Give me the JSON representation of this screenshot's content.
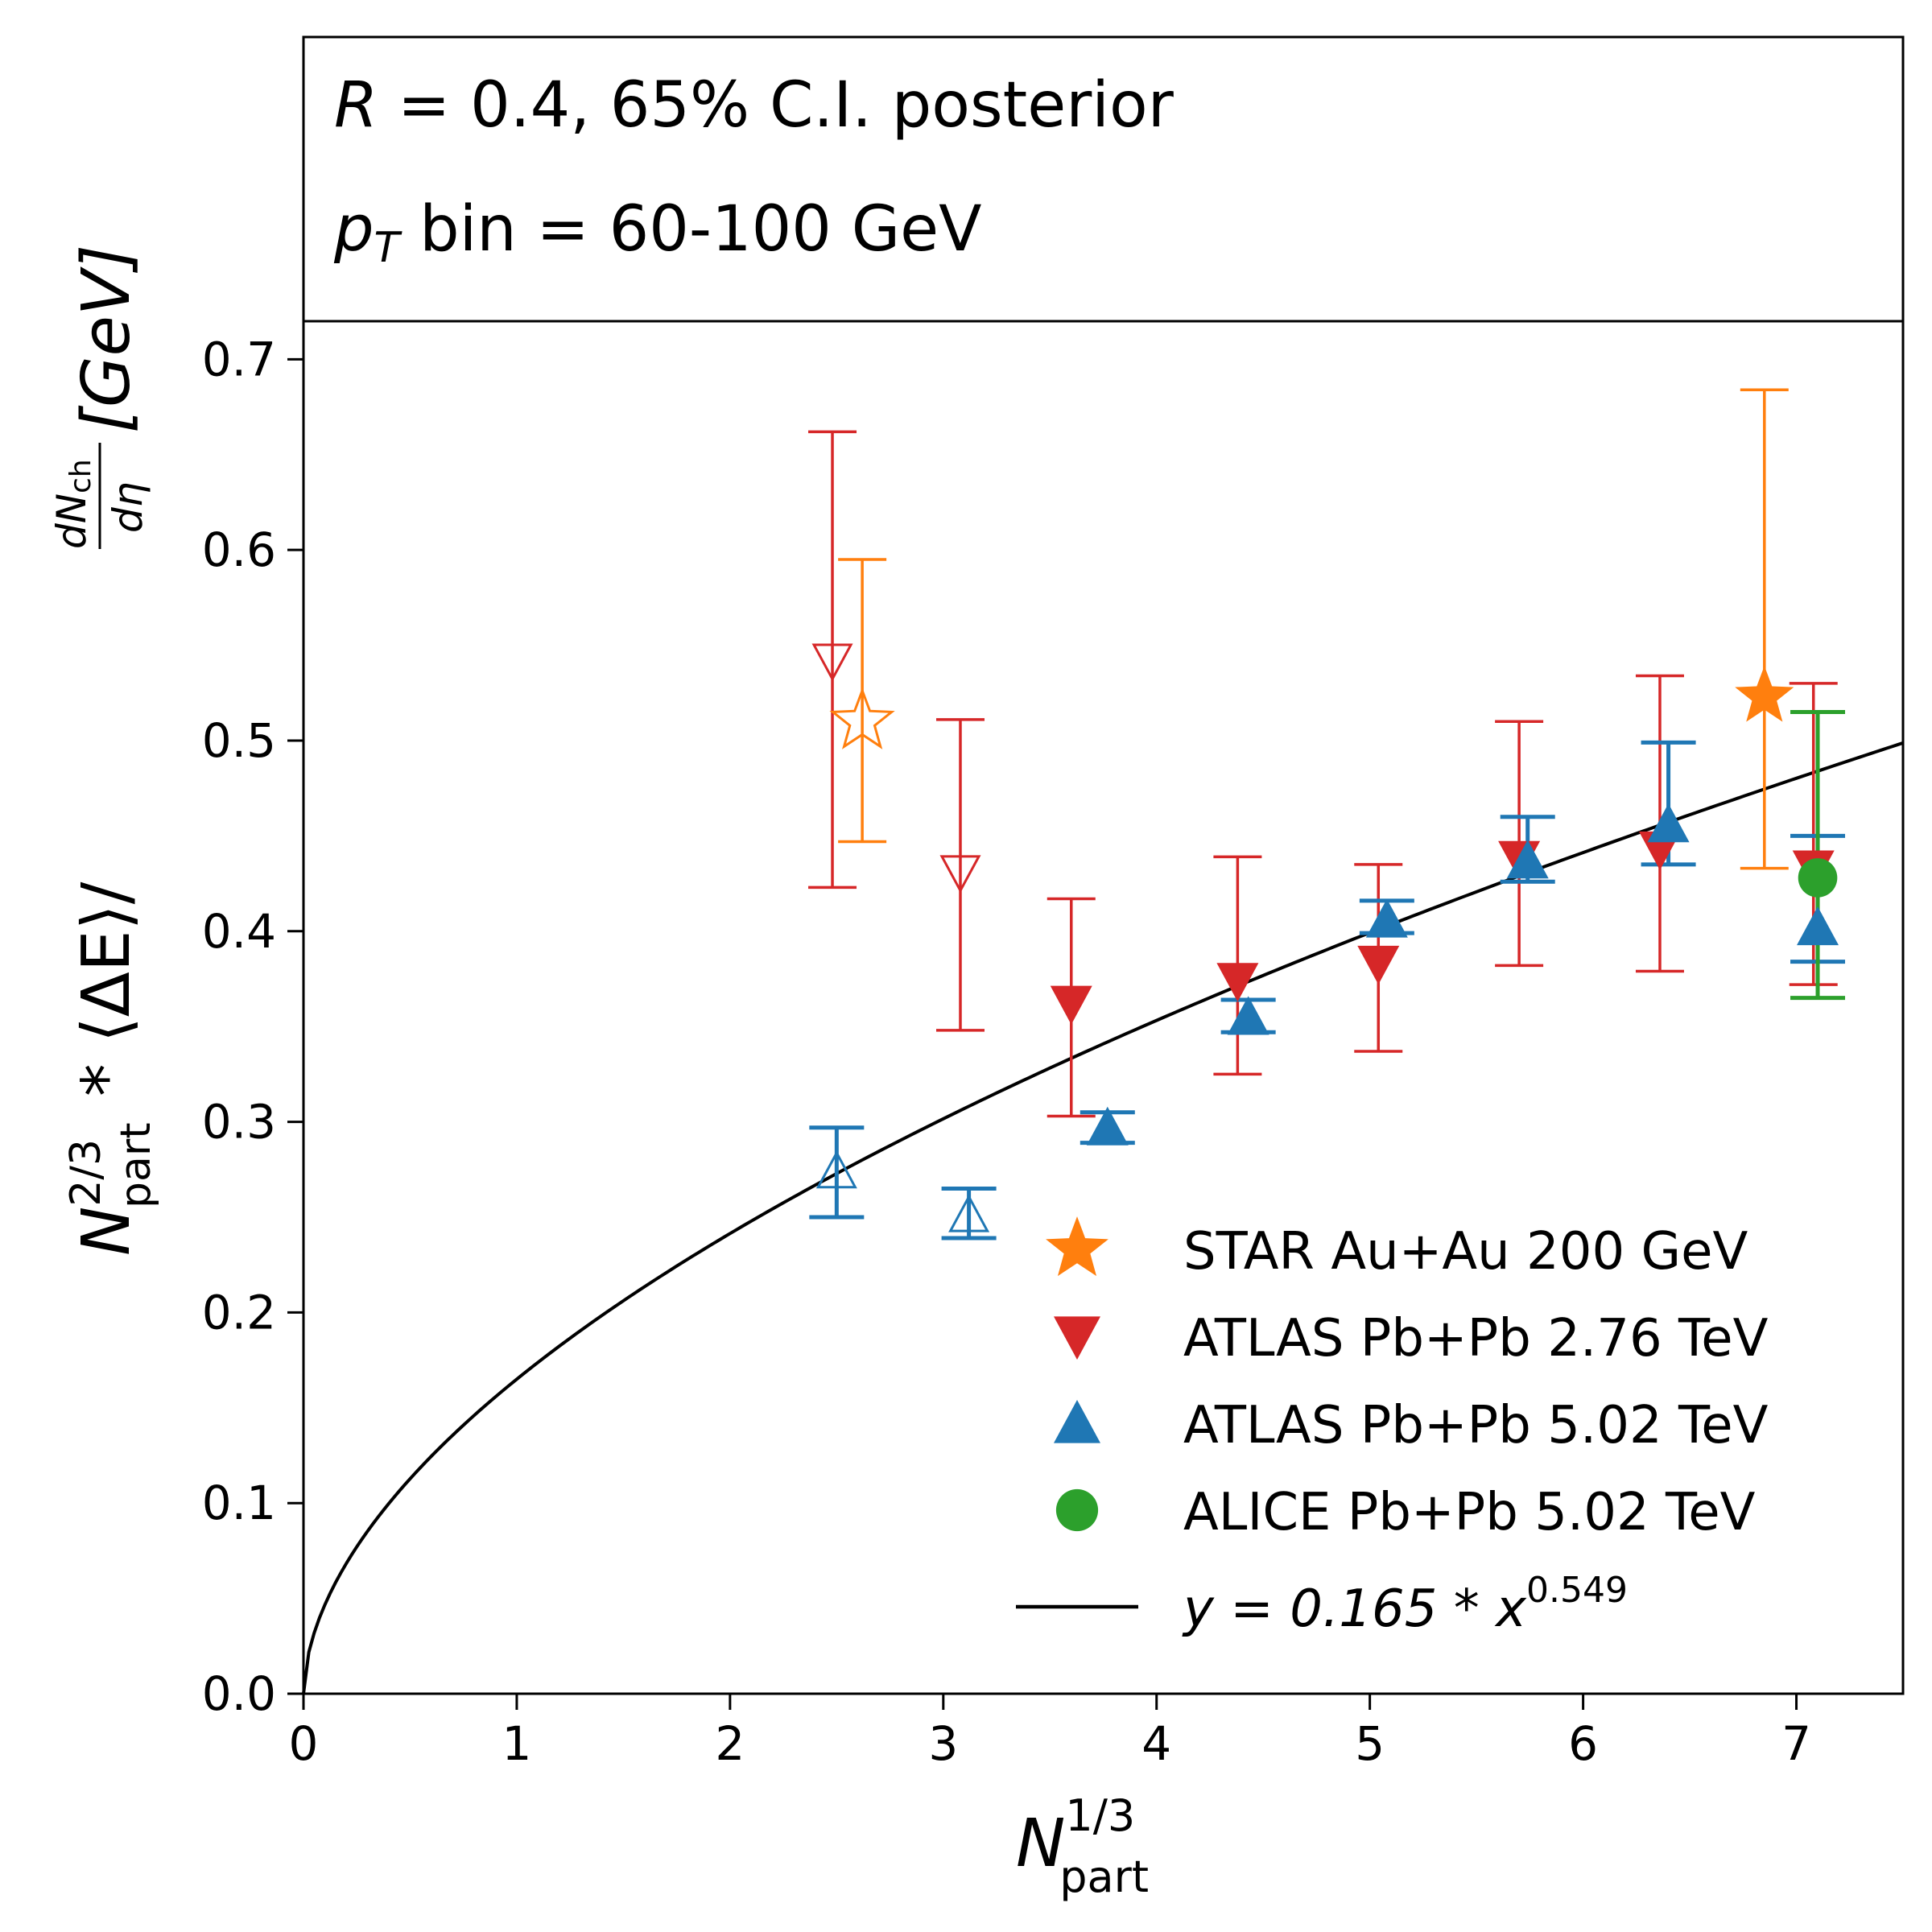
{
  "info_box": {
    "line1_symbol": "R",
    "line1_rest": " = 0.4, 65% C.I. posterior",
    "line2_symbol": "p",
    "line2_subscript": "T",
    "line2_rest": " bin = 60-100 GeV"
  },
  "axis_labels": {
    "y_main": "N",
    "y_sup": "2/3",
    "y_sub": "part",
    "y_mid": " * ⟨ΔE⟩/",
    "y_frac_num": "dN",
    "y_frac_num_sub": "ch",
    "y_frac_den": "dη",
    "y_unit": "[GeV]",
    "x_main": "N",
    "x_sup": "1/3",
    "x_sub": "part"
  },
  "legend": {
    "entries": [
      {
        "marker": "star",
        "color": "#ff7f0e",
        "label": "STAR Au+Au 200 GeV"
      },
      {
        "marker": "triangle-down",
        "color": "#d62728",
        "label": "ATLAS Pb+Pb 2.76 TeV"
      },
      {
        "marker": "triangle-up",
        "color": "#1f77b4",
        "label": "ATLAS Pb+Pb 5.02 TeV"
      },
      {
        "marker": "circle",
        "color": "#2ca02c",
        "label": "ALICE Pb+Pb 5.02 TeV"
      }
    ],
    "fit_prefix": "y = 0.165 * x",
    "fit_exponent": "0.549"
  },
  "chart_data": {
    "type": "scatter",
    "xlim": [
      0,
      7.5
    ],
    "ylim": [
      0,
      0.72
    ],
    "xticks": [
      0,
      1,
      2,
      3,
      4,
      5,
      6,
      7
    ],
    "yticks": [
      0.0,
      0.1,
      0.2,
      0.3,
      0.4,
      0.5,
      0.6,
      0.7
    ],
    "xtick_labels": [
      "0",
      "1",
      "2",
      "3",
      "4",
      "5",
      "6",
      "7"
    ],
    "ytick_labels": [
      "0.0",
      "0.1",
      "0.2",
      "0.3",
      "0.4",
      "0.5",
      "0.6",
      "0.7"
    ],
    "series": [
      {
        "name": "STAR Au+Au 200 GeV",
        "marker": "star",
        "color": "#ff7f0e",
        "points": [
          {
            "x": 2.62,
            "y": 0.51,
            "lo": 0.447,
            "hi": 0.595,
            "open": true
          },
          {
            "x": 6.85,
            "y": 0.523,
            "lo": 0.433,
            "hi": 0.684,
            "open": false
          }
        ]
      },
      {
        "name": "ATLAS Pb+Pb 2.76 TeV",
        "marker": "triangle-down",
        "color": "#d62728",
        "points": [
          {
            "x": 2.48,
            "y": 0.542,
            "lo": 0.423,
            "hi": 0.662,
            "open": true
          },
          {
            "x": 3.08,
            "y": 0.431,
            "lo": 0.348,
            "hi": 0.511,
            "open": true
          },
          {
            "x": 3.6,
            "y": 0.362,
            "lo": 0.303,
            "hi": 0.417,
            "open": false
          },
          {
            "x": 4.38,
            "y": 0.374,
            "lo": 0.325,
            "hi": 0.439,
            "open": false
          },
          {
            "x": 5.04,
            "y": 0.383,
            "lo": 0.337,
            "hi": 0.435,
            "open": false
          },
          {
            "x": 5.7,
            "y": 0.438,
            "lo": 0.382,
            "hi": 0.51,
            "open": false
          },
          {
            "x": 6.36,
            "y": 0.443,
            "lo": 0.379,
            "hi": 0.534,
            "open": false
          },
          {
            "x": 7.08,
            "y": 0.433,
            "lo": 0.372,
            "hi": 0.53,
            "open": false
          }
        ]
      },
      {
        "name": "ATLAS Pb+Pb 5.02 TeV",
        "marker": "triangle-up",
        "color": "#1f77b4",
        "points": [
          {
            "x": 2.5,
            "y": 0.274,
            "lo": 0.25,
            "hi": 0.297,
            "open": true
          },
          {
            "x": 3.12,
            "y": 0.251,
            "lo": 0.239,
            "hi": 0.265,
            "open": true
          },
          {
            "x": 3.77,
            "y": 0.297,
            "lo": 0.289,
            "hi": 0.305,
            "open": false
          },
          {
            "x": 4.43,
            "y": 0.355,
            "lo": 0.347,
            "hi": 0.364,
            "open": false
          },
          {
            "x": 5.08,
            "y": 0.406,
            "lo": 0.399,
            "hi": 0.416,
            "open": false
          },
          {
            "x": 5.74,
            "y": 0.437,
            "lo": 0.426,
            "hi": 0.46,
            "open": false
          },
          {
            "x": 6.4,
            "y": 0.456,
            "lo": 0.435,
            "hi": 0.499,
            "open": false
          },
          {
            "x": 7.1,
            "y": 0.402,
            "lo": 0.384,
            "hi": 0.45,
            "open": false
          }
        ]
      },
      {
        "name": "ALICE Pb+Pb 5.02 TeV",
        "marker": "circle",
        "color": "#2ca02c",
        "points": [
          {
            "x": 7.1,
            "y": 0.428,
            "lo": 0.365,
            "hi": 0.515,
            "open": false
          }
        ]
      }
    ],
    "fit": {
      "a": 0.165,
      "b": 0.549,
      "color": "#000000",
      "x_range": [
        0,
        7.5
      ]
    }
  }
}
